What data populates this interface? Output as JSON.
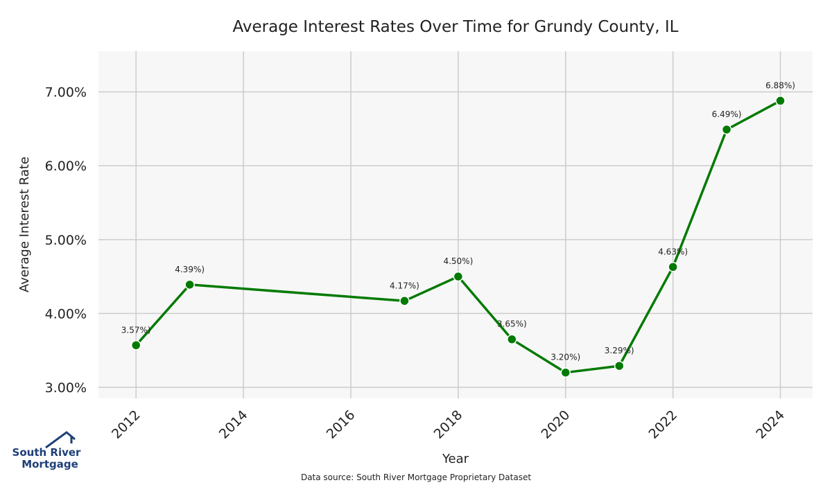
{
  "chart_data": {
    "type": "line",
    "title": "Average Interest Rates Over Time for Grundy County, IL",
    "xlabel": "Year",
    "ylabel": "Average Interest Rate",
    "x": [
      2012,
      2013,
      2017,
      2018,
      2019,
      2020,
      2021,
      2022,
      2023,
      2024
    ],
    "values": [
      3.57,
      4.39,
      4.17,
      4.5,
      3.65,
      3.2,
      3.29,
      4.63,
      6.49,
      6.88
    ],
    "data_labels": [
      "3.57%)",
      "4.39%)",
      "4.17%)",
      "4.50%)",
      "3.65%)",
      "3.20%)",
      "3.29%)",
      "4.63%)",
      "6.49%)",
      "6.88%)"
    ],
    "xlim": [
      2011.3,
      2024.6
    ],
    "ylim": [
      2.85,
      7.55
    ],
    "xticks": [
      2012,
      2014,
      2016,
      2018,
      2020,
      2022,
      2024
    ],
    "xtick_labels": [
      "2012",
      "2014",
      "2016",
      "2018",
      "2020",
      "2022",
      "2024"
    ],
    "yticks": [
      3,
      4,
      5,
      6,
      7
    ],
    "ytick_labels": [
      "3.00%",
      "4.00%",
      "5.00%",
      "6.00%",
      "7.00%"
    ],
    "grid": true,
    "line_color": "#007a00",
    "background_color": "#f7f7f7",
    "grid_color": "#cccccc"
  },
  "footer": {
    "source": "Data source: South River Mortgage Proprietary Dataset"
  },
  "logo": {
    "line1": "South River",
    "line2": "Mortgage",
    "color": "#1f3f77"
  }
}
